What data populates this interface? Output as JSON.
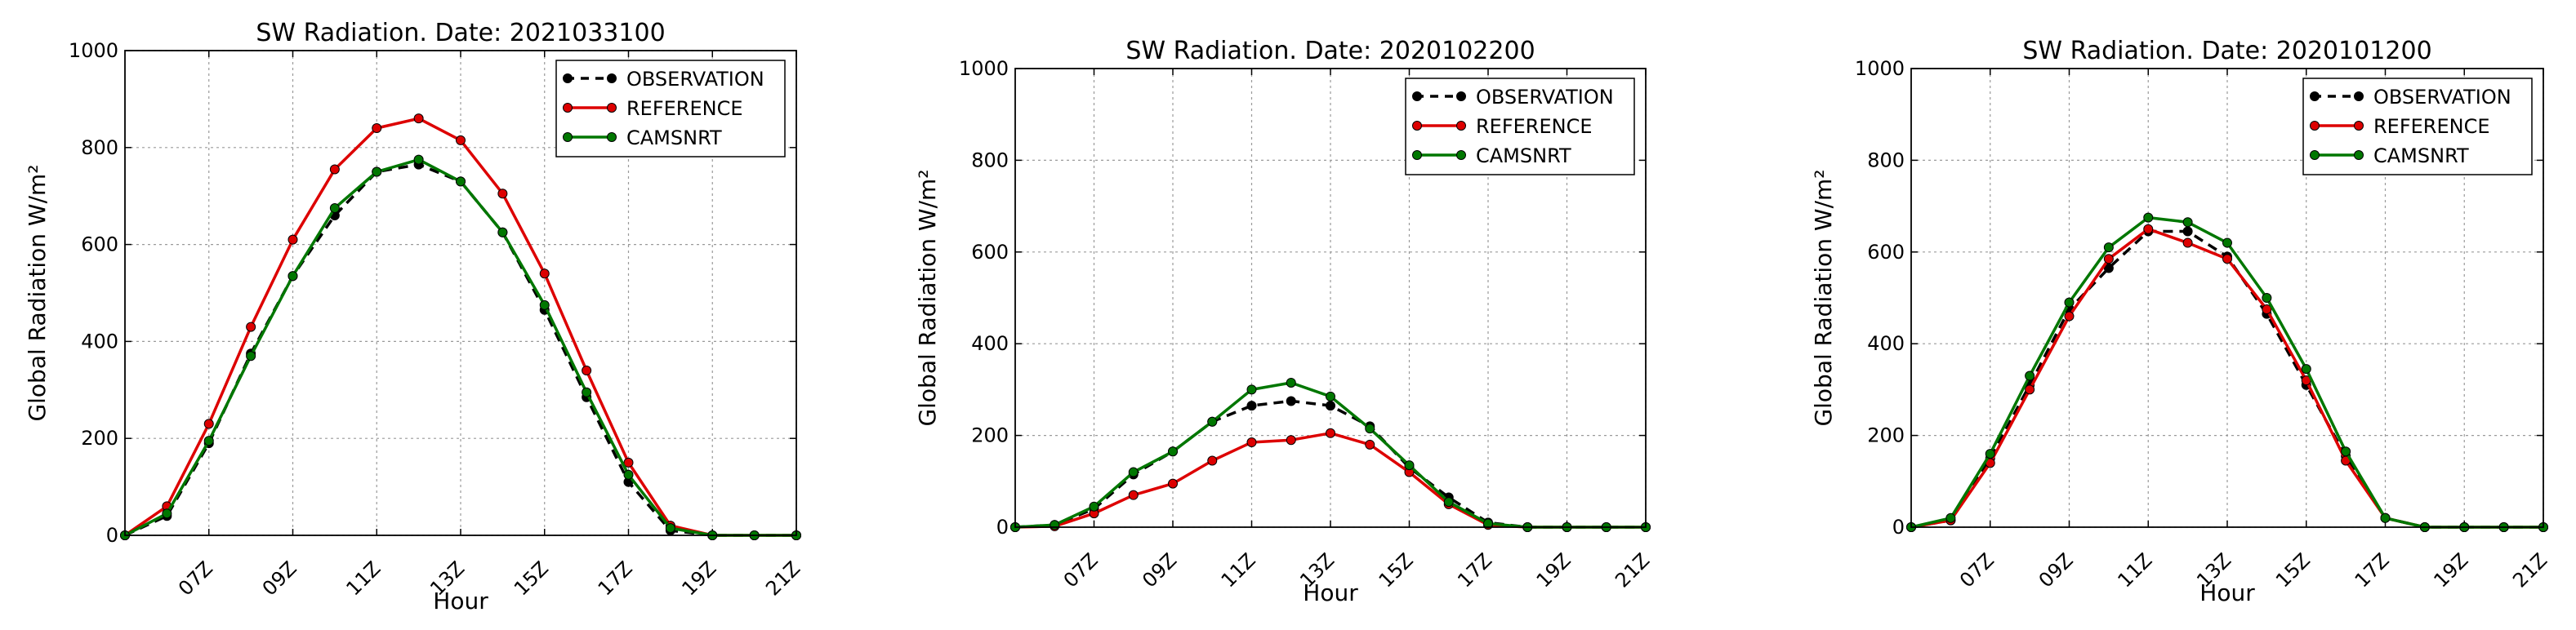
{
  "chart_data": [
    {
      "type": "line",
      "title": "SW Radiation. Date: 2021033100",
      "xlabel": "Hour",
      "ylabel": "Global Radiation W/m²",
      "ylim": [
        0,
        1000
      ],
      "yticks": [
        "0",
        "200",
        "400",
        "600",
        "800",
        "1000"
      ],
      "xlim": [
        5,
        21
      ],
      "xticks": [
        {
          "v": 7,
          "label": "07Z"
        },
        {
          "v": 9,
          "label": "09Z"
        },
        {
          "v": 11,
          "label": "11Z"
        },
        {
          "v": 13,
          "label": "13Z"
        },
        {
          "v": 15,
          "label": "15Z"
        },
        {
          "v": 17,
          "label": "17Z"
        },
        {
          "v": 19,
          "label": "19Z"
        },
        {
          "v": 21,
          "label": "21Z"
        }
      ],
      "grid": true,
      "legend_position": "top-right",
      "x": [
        5,
        6,
        7,
        8,
        9,
        10,
        11,
        12,
        13,
        14,
        15,
        16,
        17,
        18,
        19,
        20,
        21
      ],
      "series": [
        {
          "name": "OBSERVATION",
          "color": "#000000",
          "style": "dashed",
          "values": [
            0,
            40,
            190,
            375,
            535,
            660,
            750,
            765,
            730,
            625,
            465,
            285,
            110,
            10,
            0,
            0,
            0
          ]
        },
        {
          "name": "REFERENCE",
          "color": "#dd0000",
          "style": "solid",
          "values": [
            0,
            60,
            230,
            430,
            610,
            755,
            840,
            860,
            815,
            705,
            540,
            340,
            150,
            20,
            0,
            0,
            0
          ]
        },
        {
          "name": "CAMSNRT",
          "color": "#007700",
          "style": "solid",
          "values": [
            0,
            45,
            195,
            370,
            535,
            675,
            750,
            775,
            730,
            625,
            475,
            295,
            125,
            15,
            0,
            0,
            0
          ]
        }
      ]
    },
    {
      "type": "line",
      "title": "SW Radiation. Date: 2020102200",
      "xlabel": "Hour",
      "ylabel": "Global Radiation W/m²",
      "ylim": [
        0,
        1000
      ],
      "yticks": [
        "0",
        "200",
        "400",
        "600",
        "800",
        "1000"
      ],
      "xlim": [
        5,
        21
      ],
      "xticks": [
        {
          "v": 7,
          "label": "07Z"
        },
        {
          "v": 9,
          "label": "09Z"
        },
        {
          "v": 11,
          "label": "11Z"
        },
        {
          "v": 13,
          "label": "13Z"
        },
        {
          "v": 15,
          "label": "15Z"
        },
        {
          "v": 17,
          "label": "17Z"
        },
        {
          "v": 19,
          "label": "19Z"
        },
        {
          "v": 21,
          "label": "21Z"
        }
      ],
      "grid": true,
      "legend_position": "top-right",
      "x": [
        5,
        6,
        7,
        8,
        9,
        10,
        11,
        12,
        13,
        14,
        15,
        16,
        17,
        18,
        19,
        20,
        21
      ],
      "series": [
        {
          "name": "OBSERVATION",
          "color": "#000000",
          "style": "dashed",
          "values": [
            0,
            5,
            40,
            115,
            165,
            230,
            265,
            275,
            265,
            220,
            130,
            65,
            10,
            0,
            0,
            0,
            0
          ]
        },
        {
          "name": "REFERENCE",
          "color": "#dd0000",
          "style": "solid",
          "values": [
            0,
            2,
            30,
            70,
            95,
            145,
            185,
            190,
            205,
            180,
            120,
            50,
            5,
            0,
            0,
            0,
            0
          ]
        },
        {
          "name": "CAMSNRT",
          "color": "#007700",
          "style": "solid",
          "values": [
            0,
            5,
            45,
            120,
            165,
            230,
            300,
            315,
            285,
            215,
            135,
            55,
            8,
            0,
            0,
            0,
            0
          ]
        }
      ]
    },
    {
      "type": "line",
      "title": "SW Radiation. Date: 2020101200",
      "xlabel": "Hour",
      "ylabel": "Global Radiation W/m²",
      "ylim": [
        0,
        1000
      ],
      "yticks": [
        "0",
        "200",
        "400",
        "600",
        "800",
        "1000"
      ],
      "xlim": [
        5,
        21
      ],
      "xticks": [
        {
          "v": 7,
          "label": "07Z"
        },
        {
          "v": 9,
          "label": "09Z"
        },
        {
          "v": 11,
          "label": "11Z"
        },
        {
          "v": 13,
          "label": "13Z"
        },
        {
          "v": 15,
          "label": "15Z"
        },
        {
          "v": 17,
          "label": "17Z"
        },
        {
          "v": 19,
          "label": "19Z"
        },
        {
          "v": 21,
          "label": "21Z"
        }
      ],
      "grid": true,
      "legend_position": "top-right",
      "x": [
        5,
        6,
        7,
        8,
        9,
        10,
        11,
        12,
        13,
        14,
        15,
        16,
        17,
        18,
        19,
        20,
        21
      ],
      "series": [
        {
          "name": "OBSERVATION",
          "color": "#000000",
          "style": "dashed",
          "values": [
            0,
            15,
            150,
            310,
            475,
            565,
            645,
            645,
            590,
            465,
            310,
            155,
            20,
            0,
            0,
            0,
            0
          ]
        },
        {
          "name": "REFERENCE",
          "color": "#dd0000",
          "style": "solid",
          "values": [
            0,
            15,
            140,
            300,
            460,
            585,
            650,
            620,
            585,
            475,
            320,
            145,
            20,
            0,
            0,
            0,
            0
          ]
        },
        {
          "name": "CAMSNRT",
          "color": "#007700",
          "style": "solid",
          "values": [
            0,
            20,
            160,
            330,
            490,
            610,
            675,
            665,
            620,
            500,
            345,
            165,
            20,
            0,
            0,
            0,
            0
          ]
        }
      ]
    }
  ]
}
